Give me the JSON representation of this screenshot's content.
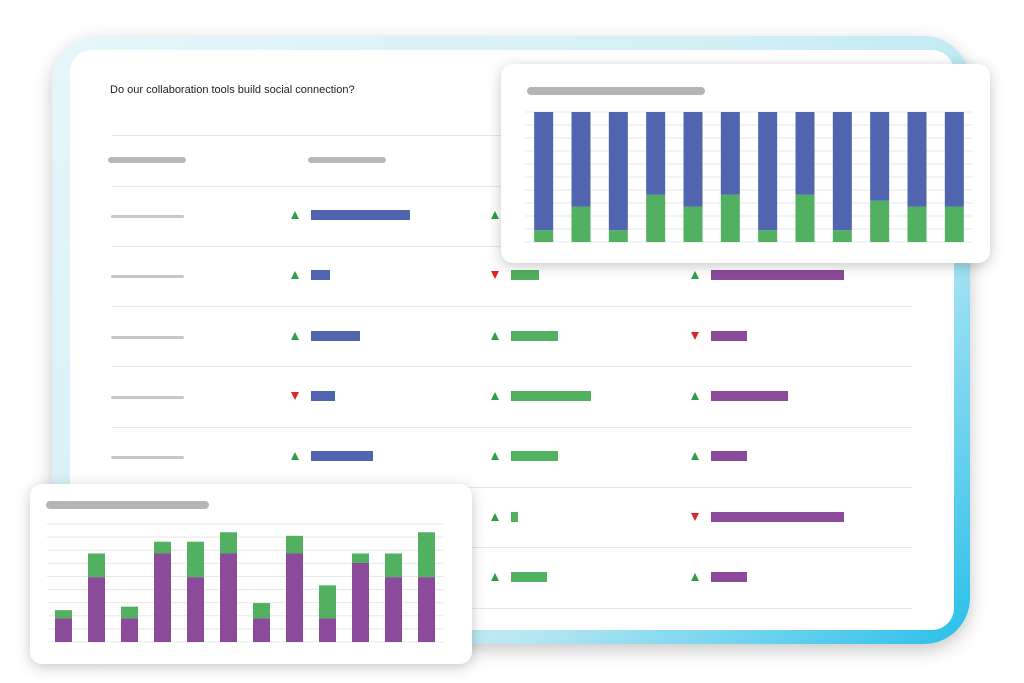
{
  "question": "Do our collaboration tools build social connection?",
  "colors": {
    "blue": "#5064b0",
    "green": "#52b061",
    "purple": "#8c4a9a",
    "up_arrow": "#2f9e44",
    "down_arrow": "#e02424"
  },
  "table": {
    "rows": [
      {
        "cells": [
          {
            "trend": "up",
            "value": 0.53
          },
          {
            "trend": "up",
            "value": null
          },
          {
            "trend": null,
            "value": null
          }
        ]
      },
      {
        "cells": [
          {
            "trend": "up",
            "value": 0.1
          },
          {
            "trend": "down",
            "value": 0.15
          },
          {
            "trend": "up",
            "value": 0.71
          }
        ]
      },
      {
        "cells": [
          {
            "trend": "up",
            "value": 0.26
          },
          {
            "trend": "up",
            "value": 0.25
          },
          {
            "trend": "down",
            "value": 0.19
          }
        ]
      },
      {
        "cells": [
          {
            "trend": "down",
            "value": 0.13
          },
          {
            "trend": "up",
            "value": 0.43
          },
          {
            "trend": "up",
            "value": 0.41
          }
        ]
      },
      {
        "cells": [
          {
            "trend": "up",
            "value": 0.33
          },
          {
            "trend": "up",
            "value": 0.25
          },
          {
            "trend": "up",
            "value": 0.19
          }
        ]
      },
      {
        "cells": [
          {
            "trend": null,
            "value": null
          },
          {
            "trend": "up",
            "value": 0.04
          },
          {
            "trend": "down",
            "value": 0.71
          }
        ]
      },
      {
        "cells": [
          {
            "trend": null,
            "value": null
          },
          {
            "trend": "up",
            "value": 0.19
          },
          {
            "trend": "up",
            "value": 0.19
          }
        ]
      }
    ]
  },
  "chart_data": [
    {
      "type": "bar",
      "stacked": true,
      "orientation": "vertical",
      "ylim": [
        0,
        11
      ],
      "grid": true,
      "categories_count": 12,
      "series": [
        {
          "color": "#52b061",
          "values": [
            1,
            3,
            1,
            4,
            3,
            4,
            1,
            4,
            1,
            3.5,
            3,
            3
          ]
        },
        {
          "color": "#5064b0",
          "values": [
            10,
            8,
            10,
            7,
            8,
            7,
            10,
            7,
            10,
            7.5,
            8,
            8
          ]
        }
      ]
    },
    {
      "type": "bar",
      "stacked": true,
      "orientation": "vertical",
      "ylim": [
        0,
        10
      ],
      "grid": true,
      "categories_count": 12,
      "series": [
        {
          "color": "#8c4a9a",
          "values": [
            2,
            5.5,
            2,
            7.5,
            5.5,
            7.5,
            2,
            7.5,
            2,
            6.7,
            5.5,
            5.5
          ]
        },
        {
          "color": "#52b061",
          "values": [
            0.7,
            2,
            1,
            1,
            3,
            1.8,
            1.3,
            1.5,
            2.8,
            0.8,
            2,
            3.8
          ]
        }
      ]
    }
  ]
}
